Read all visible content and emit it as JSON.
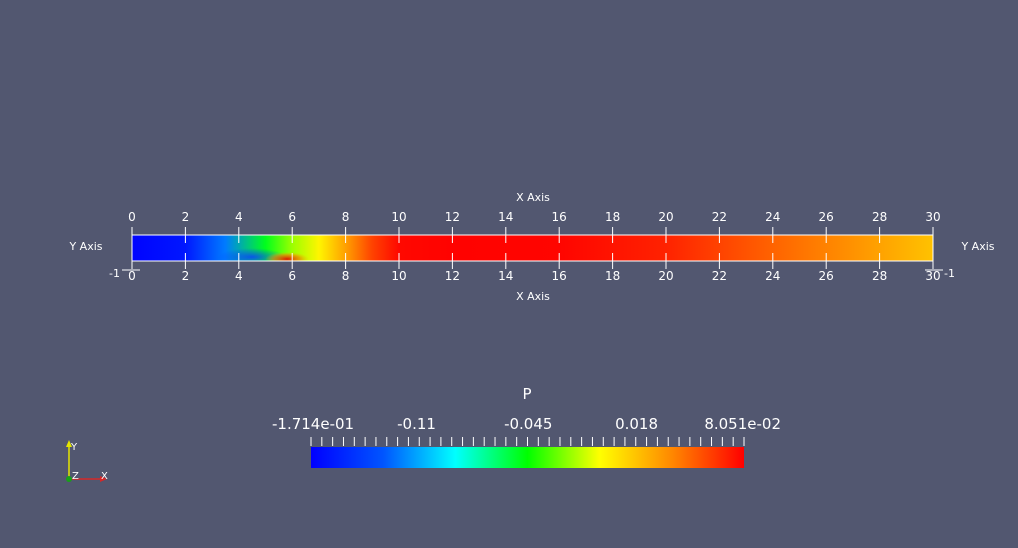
{
  "chart_data": {
    "type": "heatmap",
    "field_name": "P",
    "x_axis": {
      "label_top": "X Axis",
      "label_bottom": "X Axis",
      "range": [
        0,
        30
      ],
      "ticks": [
        0,
        2,
        4,
        6,
        8,
        10,
        12,
        14,
        16,
        18,
        20,
        22,
        24,
        26,
        28,
        30
      ]
    },
    "y_axis": {
      "label_left": "Y Axis",
      "label_right": "Y Axis",
      "range": [
        -1,
        0
      ],
      "tick_left": "-1",
      "tick_right": "-1"
    },
    "field_profile": {
      "x": [
        0,
        2,
        3.5,
        5,
        6,
        7,
        8,
        9,
        10,
        12,
        16,
        20,
        24,
        27,
        30
      ],
      "p": [
        -0.17,
        -0.16,
        -0.12,
        -0.05,
        -0.02,
        0.0,
        0.03,
        0.06,
        0.078,
        0.08,
        0.079,
        0.07,
        0.05,
        0.035,
        0.018
      ]
    },
    "colorbar": {
      "title": "P",
      "range": [
        -0.1714,
        0.08051
      ],
      "labels": [
        {
          "value": -0.1714,
          "text": "-1.714e-01"
        },
        {
          "value": -0.11,
          "text": "-0.11"
        },
        {
          "value": -0.045,
          "text": "-0.045"
        },
        {
          "value": 0.018,
          "text": "0.018"
        },
        {
          "value": 0.08051,
          "text": "8.051e-02"
        }
      ],
      "colors": [
        "#0000ff",
        "#0055ff",
        "#00ffff",
        "#00ff00",
        "#ffff00",
        "#ff8800",
        "#ff0000"
      ]
    }
  },
  "orientation": {
    "y_label": "Y",
    "z_label": "Z",
    "x_label": "X",
    "colors": {
      "x": "#d62828",
      "y": "#e6e600",
      "z": "#18a018"
    }
  }
}
